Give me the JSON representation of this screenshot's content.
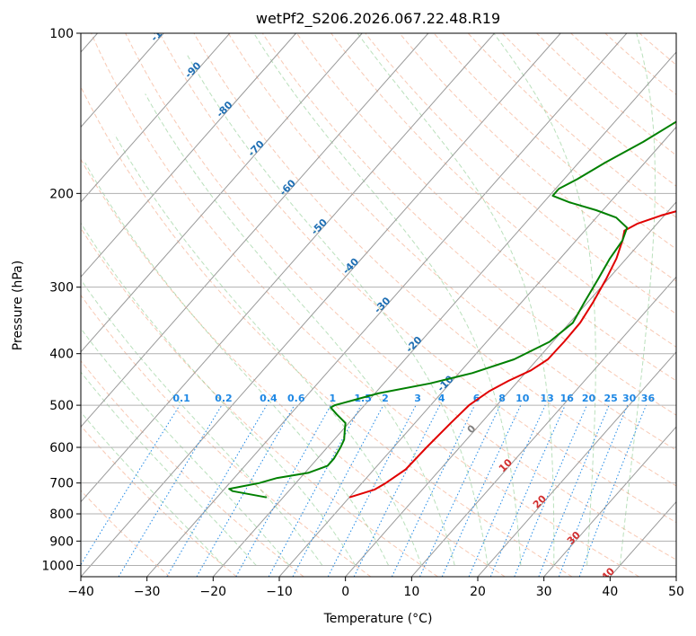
{
  "chart_data": {
    "type": "line",
    "subtype": "skew-t log-p diagram",
    "title": "wetPf2_S206.2026.067.22.48.R19",
    "xlabel": "Temperature (°C)",
    "ylabel": "Pressure (hPa)",
    "xlim": [
      -40,
      50
    ],
    "ylim": [
      1050,
      100
    ],
    "x_ticks": [
      -40,
      -30,
      -20,
      -10,
      0,
      10,
      20,
      30,
      40,
      50
    ],
    "x_tick_labels": [
      "−40",
      "−30",
      "−20",
      "−10",
      "0",
      "10",
      "20",
      "30",
      "40",
      "50"
    ],
    "y_ticks": [
      100,
      200,
      300,
      400,
      500,
      600,
      700,
      800,
      900,
      1000
    ],
    "y_tick_labels": [
      "100",
      "200",
      "300",
      "400",
      "500",
      "600",
      "700",
      "800",
      "900",
      "1000"
    ],
    "skew_isotherm_labels_blue": [
      "-100",
      "-90",
      "-80",
      "-70",
      "-60",
      "-50",
      "-40",
      "-30",
      "-20",
      "-10"
    ],
    "skew_isotherm_labels_gray": [
      "0"
    ],
    "skew_isotherm_labels_red": [
      "10",
      "20",
      "30",
      "40"
    ],
    "mixing_ratio_labels": [
      "0.1",
      "0.2",
      "0.4",
      "0.6",
      "1",
      "1.5",
      "2",
      "3",
      "4",
      "6",
      "8",
      "10",
      "13",
      "16",
      "20",
      "25",
      "30",
      "36"
    ],
    "series": [
      {
        "name": "Temperature",
        "color": "#e00000",
        "points": [
          {
            "p": 745,
            "t": -10
          },
          {
            "p": 720,
            "t": -7.2
          },
          {
            "p": 700,
            "t": -6.4
          },
          {
            "p": 660,
            "t": -5.2
          },
          {
            "p": 600,
            "t": -5.0
          },
          {
            "p": 540,
            "t": -4.6
          },
          {
            "p": 500,
            "t": -4.2
          },
          {
            "p": 470,
            "t": -3.0
          },
          {
            "p": 450,
            "t": -1.5
          },
          {
            "p": 430,
            "t": 0.5
          },
          {
            "p": 410,
            "t": 1.6
          },
          {
            "p": 380,
            "t": 1.7
          },
          {
            "p": 350,
            "t": 1.6
          },
          {
            "p": 320,
            "t": 0.8
          },
          {
            "p": 290,
            "t": -0.3
          },
          {
            "p": 265,
            "t": -1.5
          },
          {
            "p": 245,
            "t": -3.0
          },
          {
            "p": 235,
            "t": -4.0
          },
          {
            "p": 228,
            "t": -3.0
          },
          {
            "p": 220,
            "t": -0.5
          },
          {
            "p": 212,
            "t": 3.0
          },
          {
            "p": 205,
            "t": 5.0
          },
          {
            "p": 195,
            "t": 7.0
          },
          {
            "p": 180,
            "t": 9.0
          },
          {
            "p": 160,
            "t": 11.5
          },
          {
            "p": 140,
            "t": 14.5
          },
          {
            "p": 120,
            "t": 18.0
          },
          {
            "p": 110,
            "t": 20.5
          },
          {
            "p": 100,
            "t": 22.0
          }
        ]
      },
      {
        "name": "Dewpoint",
        "color": "#008000",
        "points": [
          {
            "p": 745,
            "t": -22.5
          },
          {
            "p": 735,
            "t": -25.5
          },
          {
            "p": 725,
            "t": -28.5
          },
          {
            "p": 718,
            "t": -29.3
          },
          {
            "p": 712,
            "t": -28.0
          },
          {
            "p": 700,
            "t": -25.5
          },
          {
            "p": 685,
            "t": -23.5
          },
          {
            "p": 670,
            "t": -19.5
          },
          {
            "p": 650,
            "t": -17.5
          },
          {
            "p": 630,
            "t": -17.5
          },
          {
            "p": 600,
            "t": -18.0
          },
          {
            "p": 580,
            "t": -18.5
          },
          {
            "p": 560,
            "t": -19.5
          },
          {
            "p": 540,
            "t": -20.5
          },
          {
            "p": 520,
            "t": -23.0
          },
          {
            "p": 505,
            "t": -24.8
          },
          {
            "p": 500,
            "t": -24.5
          },
          {
            "p": 490,
            "t": -22.5
          },
          {
            "p": 475,
            "t": -19.5
          },
          {
            "p": 455,
            "t": -13.0
          },
          {
            "p": 435,
            "t": -8.0
          },
          {
            "p": 410,
            "t": -3.5
          },
          {
            "p": 380,
            "t": -0.5
          },
          {
            "p": 350,
            "t": 0.5
          },
          {
            "p": 320,
            "t": -0.5
          },
          {
            "p": 290,
            "t": -1.5
          },
          {
            "p": 265,
            "t": -2.5
          },
          {
            "p": 245,
            "t": -3.0
          },
          {
            "p": 232,
            "t": -4.0
          },
          {
            "p": 222,
            "t": -7.0
          },
          {
            "p": 215,
            "t": -11.0
          },
          {
            "p": 208,
            "t": -16.0
          },
          {
            "p": 202,
            "t": -19.5
          },
          {
            "p": 196,
            "t": -19.5
          },
          {
            "p": 188,
            "t": -18.0
          },
          {
            "p": 175,
            "t": -16.0
          },
          {
            "p": 160,
            "t": -13.0
          },
          {
            "p": 140,
            "t": -9.5
          },
          {
            "p": 120,
            "t": -4.0
          },
          {
            "p": 100,
            "t": 1.5
          }
        ]
      }
    ]
  }
}
